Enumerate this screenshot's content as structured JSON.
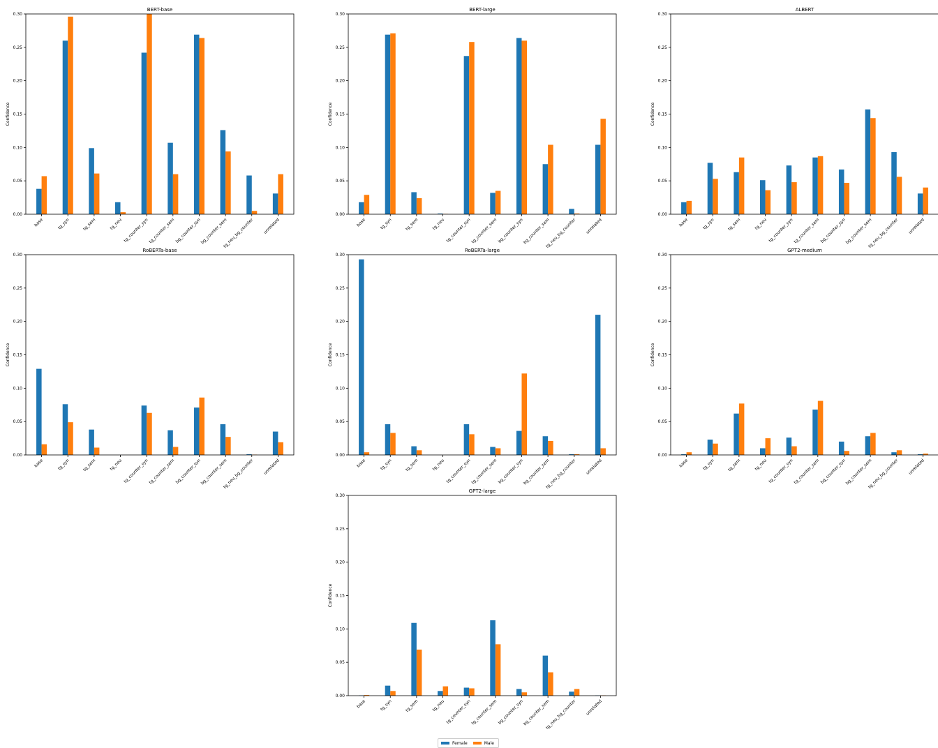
{
  "chart_data": [
    {
      "type": "bar",
      "title": "BERT-base",
      "ylabel": "Confidence",
      "ylim": [
        0,
        0.3
      ],
      "yticks": [
        "0.00",
        "0.05",
        "0.10",
        "0.15",
        "0.20",
        "0.25",
        "0.30"
      ],
      "categories": [
        "base",
        "tg_syn",
        "tg_sem",
        "tg_neu",
        "tg_counter_syn",
        "tg_counter_sem",
        "bg_counter_syn",
        "bg_counter_sem",
        "tg_neu_bg_counter",
        "unrelated"
      ],
      "series": [
        {
          "name": "Female",
          "values": [
            0.038,
            0.26,
            0.099,
            0.018,
            0.242,
            0.107,
            0.269,
            0.126,
            0.058,
            0.031
          ]
        },
        {
          "name": "Male",
          "values": [
            0.057,
            0.296,
            0.061,
            0.003,
            0.3,
            0.06,
            0.264,
            0.094,
            0.005,
            0.06
          ]
        }
      ]
    },
    {
      "type": "bar",
      "title": "BERT-large",
      "ylabel": "Confidence",
      "ylim": [
        0,
        0.3
      ],
      "yticks": [
        "0.00",
        "0.05",
        "0.10",
        "0.15",
        "0.20",
        "0.25",
        "0.30"
      ],
      "categories": [
        "base",
        "tg_syn",
        "tg_sem",
        "tg_neu",
        "tg_counter_syn",
        "tg_counter_sem",
        "bg_counter_syn",
        "bg_counter_sem",
        "tg_neu_bg_counter",
        "unrelated"
      ],
      "series": [
        {
          "name": "Female",
          "values": [
            0.018,
            0.269,
            0.033,
            0.001,
            0.237,
            0.032,
            0.264,
            0.075,
            0.008,
            0.104
          ]
        },
        {
          "name": "Male",
          "values": [
            0.029,
            0.271,
            0.024,
            0.0005,
            0.258,
            0.035,
            0.26,
            0.104,
            0.001,
            0.143
          ]
        }
      ]
    },
    {
      "type": "bar",
      "title": "ALBERT",
      "ylabel": "Confidence",
      "ylim": [
        0,
        0.3
      ],
      "yticks": [
        "0.00",
        "0.05",
        "0.10",
        "0.15",
        "0.20",
        "0.25",
        "0.30"
      ],
      "categories": [
        "base",
        "tg_syn",
        "tg_sem",
        "tg_neu",
        "tg_counter_syn",
        "tg_counter_sem",
        "bg_counter_syn",
        "bg_counter_sem",
        "tg_neu_bg_counter",
        "unrelated"
      ],
      "series": [
        {
          "name": "Female",
          "values": [
            0.018,
            0.077,
            0.063,
            0.051,
            0.073,
            0.085,
            0.067,
            0.157,
            0.093,
            0.031
          ]
        },
        {
          "name": "Male",
          "values": [
            0.02,
            0.053,
            0.085,
            0.036,
            0.048,
            0.087,
            0.047,
            0.144,
            0.056,
            0.04
          ]
        }
      ]
    },
    {
      "type": "bar",
      "title": "RoBERTa-base",
      "ylabel": "Confidence",
      "ylim": [
        0,
        0.3
      ],
      "yticks": [
        "0.00",
        "0.05",
        "0.10",
        "0.15",
        "0.20",
        "0.25",
        "0.30"
      ],
      "categories": [
        "base",
        "tg_syn",
        "tg_sem",
        "tg_neu",
        "tg_counter_syn",
        "tg_counter_sem",
        "bg_counter_syn",
        "bg_counter_sem",
        "tg_neu_bg_counter",
        "unrelated"
      ],
      "series": [
        {
          "name": "Female",
          "values": [
            0.129,
            0.076,
            0.038,
            0.0,
            0.074,
            0.037,
            0.071,
            0.046,
            0.001,
            0.035
          ]
        },
        {
          "name": "Male",
          "values": [
            0.016,
            0.049,
            0.011,
            0.0,
            0.063,
            0.012,
            0.086,
            0.027,
            0.0005,
            0.019
          ]
        }
      ]
    },
    {
      "type": "bar",
      "title": "RoBERTa-large",
      "ylabel": "Confidence",
      "ylim": [
        0,
        0.3
      ],
      "yticks": [
        "0.00",
        "0.05",
        "0.10",
        "0.15",
        "0.20",
        "0.25",
        "0.30"
      ],
      "categories": [
        "base",
        "tg_syn",
        "tg_sem",
        "tg_neu",
        "tg_counter_syn",
        "tg_counter_sem",
        "bg_counter_syn",
        "bg_counter_sem",
        "tg_neu_bg_counter",
        "unrelated"
      ],
      "series": [
        {
          "name": "Female",
          "values": [
            0.293,
            0.046,
            0.013,
            0.0,
            0.046,
            0.012,
            0.036,
            0.028,
            0.001,
            0.21
          ]
        },
        {
          "name": "Male",
          "values": [
            0.004,
            0.033,
            0.007,
            0.0,
            0.031,
            0.01,
            0.122,
            0.021,
            0.001,
            0.01
          ]
        }
      ]
    },
    {
      "type": "bar",
      "title": "GPT2-medium",
      "ylabel": "Confidence",
      "ylim": [
        0,
        0.3
      ],
      "yticks": [
        "0.00",
        "0.05",
        "0.10",
        "0.15",
        "0.20",
        "0.25",
        "0.30"
      ],
      "categories": [
        "base",
        "tg_syn",
        "tg_sem",
        "tg_neu",
        "tg_counter_syn",
        "tg_counter_sem",
        "bg_counter_syn",
        "bg_counter_sem",
        "tg_neu_bg_counter",
        "unrelated"
      ],
      "series": [
        {
          "name": "Female",
          "values": [
            0.001,
            0.023,
            0.062,
            0.01,
            0.026,
            0.068,
            0.02,
            0.028,
            0.004,
            0.001
          ]
        },
        {
          "name": "Male",
          "values": [
            0.004,
            0.017,
            0.077,
            0.025,
            0.013,
            0.081,
            0.006,
            0.033,
            0.007,
            0.002
          ]
        }
      ]
    },
    {
      "type": "bar",
      "title": "GPT2-large",
      "ylabel": "Confidence",
      "ylim": [
        0,
        0.3
      ],
      "yticks": [
        "0.00",
        "0.05",
        "0.10",
        "0.15",
        "0.20",
        "0.25",
        "0.30"
      ],
      "categories": [
        "base",
        "tg_syn",
        "tg_sem",
        "tg_neu",
        "tg_counter_syn",
        "tg_counter_sem",
        "bg_counter_syn",
        "bg_counter_sem",
        "tg_neu_bg_counter",
        "unrelated"
      ],
      "series": [
        {
          "name": "Female",
          "values": [
            0.0005,
            0.015,
            0.109,
            0.007,
            0.012,
            0.113,
            0.01,
            0.06,
            0.006,
            0.0005
          ]
        },
        {
          "name": "Male",
          "values": [
            0.001,
            0.007,
            0.069,
            0.014,
            0.011,
            0.077,
            0.005,
            0.035,
            0.01,
            0.0005
          ]
        }
      ]
    }
  ],
  "legend": {
    "placement": "bottom-center",
    "items": [
      {
        "label": "Female",
        "color": "#1f77b4"
      },
      {
        "label": "Male",
        "color": "#ff7f0e"
      }
    ]
  }
}
